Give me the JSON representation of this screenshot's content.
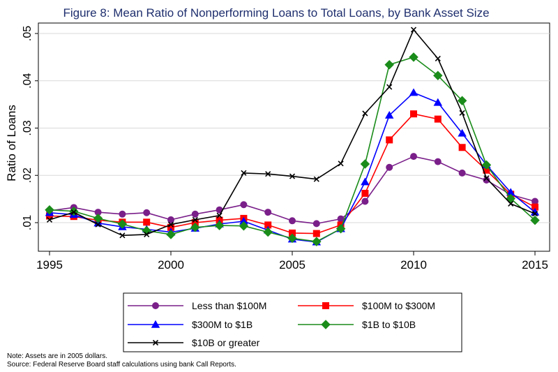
{
  "chart_data": {
    "type": "line",
    "title": "Figure 8:  Mean Ratio of Nonperforming Loans to Total Loans, by Bank Asset Size",
    "xlabel": "",
    "ylabel": "Ratio of Loans",
    "xlim": [
      1995,
      2015
    ],
    "ylim": [
      0.006,
      0.0515
    ],
    "x_ticks": [
      1995,
      2000,
      2005,
      2010,
      2015
    ],
    "y_ticks": [
      0.01,
      0.02,
      0.03,
      0.04,
      0.05
    ],
    "y_tick_labels": [
      ".01",
      ".02",
      ".03",
      ".04",
      ".05"
    ],
    "grid": "horizontal",
    "legend_position": "bottom",
    "x": [
      1995,
      1996,
      1997,
      1998,
      1999,
      2000,
      2001,
      2002,
      2003,
      2004,
      2005,
      2006,
      2007,
      2008,
      2009,
      2010,
      2011,
      2012,
      2013,
      2014,
      2015
    ],
    "series": [
      {
        "name": "Less than $100M",
        "color": "#7a1f8a",
        "marker": "circle",
        "values": [
          0.0125,
          0.0132,
          0.0122,
          0.0118,
          0.0121,
          0.0106,
          0.0118,
          0.0127,
          0.0138,
          0.0122,
          0.0104,
          0.0098,
          0.0108,
          0.0145,
          0.0217,
          0.024,
          0.0229,
          0.0205,
          0.019,
          0.0159,
          0.0145
        ]
      },
      {
        "name": "$100M to $300M",
        "color": "#ff0000",
        "marker": "square",
        "values": [
          0.0114,
          0.0113,
          0.0105,
          0.0101,
          0.0101,
          0.009,
          0.01,
          0.0105,
          0.0109,
          0.0095,
          0.0078,
          0.0077,
          0.0095,
          0.0162,
          0.0275,
          0.033,
          0.0319,
          0.0259,
          0.0211,
          0.016,
          0.0133
        ]
      },
      {
        "name": "$300M to $1B",
        "color": "#0000ff",
        "marker": "triangle",
        "values": [
          0.0121,
          0.0117,
          0.0099,
          0.0091,
          0.0086,
          0.008,
          0.0088,
          0.0097,
          0.0103,
          0.0084,
          0.0065,
          0.0059,
          0.0087,
          0.0186,
          0.0327,
          0.0375,
          0.0354,
          0.0289,
          0.0222,
          0.0164,
          0.0122
        ]
      },
      {
        "name": "$1B to $10B",
        "color": "#1a8c1a",
        "marker": "diamond",
        "values": [
          0.0127,
          0.0124,
          0.0109,
          0.0097,
          0.0083,
          0.0075,
          0.009,
          0.0094,
          0.0093,
          0.008,
          0.0067,
          0.006,
          0.0087,
          0.0224,
          0.0434,
          0.045,
          0.0411,
          0.0358,
          0.0222,
          0.0151,
          0.0105
        ]
      },
      {
        "name": "$10B or greater",
        "color": "#000000",
        "marker": "x",
        "values": [
          0.0106,
          0.0122,
          0.0096,
          0.0073,
          0.0075,
          0.0096,
          0.0106,
          0.0115,
          0.0205,
          0.0203,
          0.0198,
          0.0192,
          0.0225,
          0.0331,
          0.0387,
          0.0508,
          0.0447,
          0.0332,
          0.0194,
          0.014,
          0.0119
        ]
      }
    ]
  },
  "notes": {
    "note": "Note:  Assets are in 2005 dollars.",
    "source": "Source:  Federal Reserve Board staff calculations using bank Call Reports."
  },
  "colors": {
    "title": "#1f2f6e",
    "plot_background": "#ffffff",
    "grid": "#d9d9d9",
    "axis": "#000000"
  }
}
